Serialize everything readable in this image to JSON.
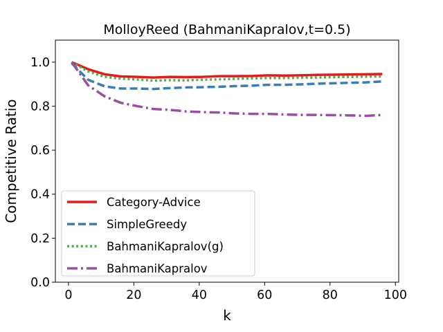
{
  "chart_data": {
    "type": "line",
    "title": "MolloyReed (BahmaniKapralov,t=0.5)",
    "xlabel": "k",
    "ylabel": "Competitive Ratio",
    "xlim": [
      -4,
      101
    ],
    "ylim": [
      0.0,
      1.1
    ],
    "xticks": [
      "0",
      "20",
      "40",
      "60",
      "80",
      "100"
    ],
    "yticks": [
      "0.0",
      "0.2",
      "0.4",
      "0.6",
      "0.8",
      "1.0"
    ],
    "grid": false,
    "legend_position": "lower-left",
    "x": [
      1,
      6,
      11,
      16,
      21,
      26,
      31,
      36,
      41,
      46,
      51,
      56,
      61,
      66,
      71,
      76,
      81,
      86,
      91,
      96
    ],
    "series": [
      {
        "name": "Category-Advice",
        "color": "#e41a1c",
        "style": "solid",
        "values": [
          1.0,
          0.968,
          0.945,
          0.935,
          0.933,
          0.93,
          0.933,
          0.932,
          0.933,
          0.936,
          0.936,
          0.937,
          0.94,
          0.939,
          0.94,
          0.942,
          0.943,
          0.944,
          0.945,
          0.946
        ]
      },
      {
        "name": "SimpleGreedy",
        "color": "#377eb8",
        "style": "dashed",
        "values": [
          0.995,
          0.92,
          0.89,
          0.88,
          0.88,
          0.878,
          0.882,
          0.885,
          0.886,
          0.888,
          0.891,
          0.893,
          0.897,
          0.897,
          0.899,
          0.902,
          0.904,
          0.906,
          0.908,
          0.912
        ]
      },
      {
        "name": "BahmaniKapralov(g)",
        "color": "#4daf4a",
        "style": "dotted",
        "values": [
          1.0,
          0.958,
          0.933,
          0.925,
          0.921,
          0.916,
          0.918,
          0.917,
          0.92,
          0.922,
          0.924,
          0.926,
          0.928,
          0.928,
          0.929,
          0.93,
          0.932,
          0.933,
          0.934,
          0.935
        ]
      },
      {
        "name": "BahmaniKapralov",
        "color": "#984ea3",
        "style": "dashdot",
        "values": [
          1.0,
          0.895,
          0.845,
          0.815,
          0.8,
          0.787,
          0.783,
          0.776,
          0.773,
          0.771,
          0.767,
          0.765,
          0.765,
          0.762,
          0.76,
          0.76,
          0.759,
          0.758,
          0.756,
          0.76
        ]
      }
    ]
  }
}
